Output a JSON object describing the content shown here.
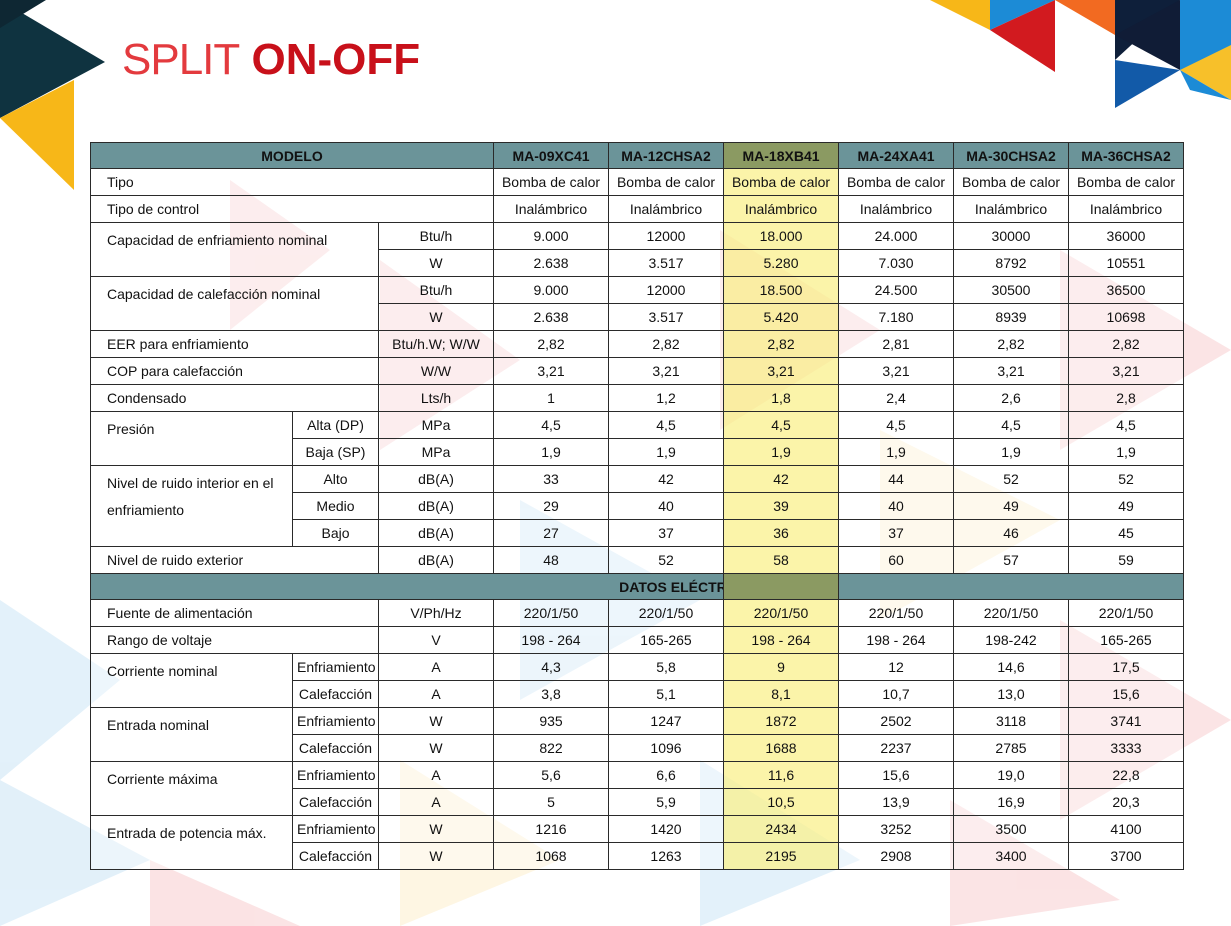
{
  "title": {
    "thin": "SPLIT",
    "bold": "ON-OFF"
  },
  "colors": {
    "brand_red": "#c8101a",
    "header_teal": "#6b9499",
    "highlight": "#f7ef8a",
    "navy": "#0e1f3a",
    "yellow": "#f7b718"
  },
  "header": {
    "label": "MODELO",
    "models": [
      "MA-09XC41",
      "MA-12CHSA2",
      "MA-18XB41",
      "MA-24XA41",
      "MA-30CHSA2",
      "MA-36CHSA2"
    ]
  },
  "rows": {
    "tipo": {
      "label": "Tipo",
      "values": [
        "Bomba de calor",
        "Bomba de calor",
        "Bomba de calor",
        "Bomba de calor",
        "Bomba de calor",
        "Bomba de calor"
      ]
    },
    "control": {
      "label": "Tipo de control",
      "values": [
        "Inalámbrico",
        "Inalámbrico",
        "Inalámbrico",
        "Inalámbrico",
        "Inalámbrico",
        "Inalámbrico"
      ]
    },
    "cooling_cap": {
      "label": "Capacidad de enfriamiento nominal",
      "unit1": "Btu/h",
      "values1": [
        "9.000",
        "12000",
        "18.000",
        "24.000",
        "30000",
        "36000"
      ],
      "unit2": "W",
      "values2": [
        "2.638",
        "3.517",
        "5.280",
        "7.030",
        "8792",
        "10551"
      ]
    },
    "heating_cap": {
      "label": "Capacidad de calefacción nominal",
      "unit1": "Btu/h",
      "values1": [
        "9.000",
        "12000",
        "18.500",
        "24.500",
        "30500",
        "36500"
      ],
      "unit2": "W",
      "values2": [
        "2.638",
        "3.517",
        "5.420",
        "7.180",
        "8939",
        "10698"
      ]
    },
    "eer": {
      "label": "EER para enfriamiento",
      "unit": "Btu/h.W; W/W",
      "values": [
        "2,82",
        "2,82",
        "2,82",
        "2,81",
        "2,82",
        "2,82"
      ]
    },
    "cop": {
      "label": "COP para calefacción",
      "unit": "W/W",
      "values": [
        "3,21",
        "3,21",
        "3,21",
        "3,21",
        "3,21",
        "3,21"
      ]
    },
    "condensado": {
      "label": "Condensado",
      "unit": "Lts/h",
      "values": [
        "1",
        "1,2",
        "1,8",
        "2,4",
        "2,6",
        "2,8"
      ]
    },
    "presion": {
      "label": "Presión",
      "sub1": "Alta (DP)",
      "unit1": "MPa",
      "values1": [
        "4,5",
        "4,5",
        "4,5",
        "4,5",
        "4,5",
        "4,5"
      ],
      "sub2": "Baja (SP)",
      "unit2": "MPa",
      "values2": [
        "1,9",
        "1,9",
        "1,9",
        "1,9",
        "1,9",
        "1,9"
      ]
    },
    "ruido_int": {
      "label": "Nivel de ruido interior en el enfriamiento",
      "sub1": "Alto",
      "sub2": "Medio",
      "sub3": "Bajo",
      "unit": "dB(A)",
      "values1": [
        "33",
        "42",
        "42",
        "44",
        "52",
        "52"
      ],
      "values2": [
        "29",
        "40",
        "39",
        "40",
        "49",
        "49"
      ],
      "values3": [
        "27",
        "37",
        "36",
        "37",
        "46",
        "45"
      ]
    },
    "ruido_ext": {
      "label": "Nivel de ruido exterior",
      "unit": "dB(A)",
      "values": [
        "48",
        "52",
        "58",
        "60",
        "57",
        "59"
      ]
    }
  },
  "section_electric": "DATOS ELÉCTRICOS",
  "electric": {
    "fuente": {
      "label": "Fuente de alimentación",
      "unit": "V/Ph/Hz",
      "values": [
        "220/1/50",
        "220/1/50",
        "220/1/50",
        "220/1/50",
        "220/1/50",
        "220/1/50"
      ]
    },
    "rango": {
      "label": "Rango de voltaje",
      "unit": "V",
      "values": [
        "198 - 264",
        "165-265",
        "198 - 264",
        "198 - 264",
        "198-242",
        "165-265"
      ]
    },
    "corriente": {
      "label": "Corriente nominal",
      "sub1": "Enfriamiento",
      "unit1": "A",
      "values1": [
        "4,3",
        "5,8",
        "9",
        "12",
        "14,6",
        "17,5"
      ],
      "sub2": "Calefacción",
      "unit2": "A",
      "values2": [
        "3,8",
        "5,1",
        "8,1",
        "10,7",
        "13,0",
        "15,6"
      ]
    },
    "entrada": {
      "label": "Entrada nominal",
      "sub1": "Enfriamiento",
      "unit1": "W",
      "values1": [
        "935",
        "1247",
        "1872",
        "2502",
        "3118",
        "3741"
      ],
      "sub2": "Calefacción",
      "unit2": "W",
      "values2": [
        "822",
        "1096",
        "1688",
        "2237",
        "2785",
        "3333"
      ]
    },
    "corriente_max": {
      "label": "Corriente máxima",
      "sub1": "Enfriamiento",
      "unit1": "A",
      "values1": [
        "5,6",
        "6,6",
        "11,6",
        "15,6",
        "19,0",
        "22,8"
      ],
      "sub2": "Calefacción",
      "unit2": "A",
      "values2": [
        "5",
        "5,9",
        "10,5",
        "13,9",
        "16,9",
        "20,3"
      ]
    },
    "potencia_max": {
      "label": "Entrada de potencia máx.",
      "sub1": "Enfriamiento",
      "unit1": "W",
      "values1": [
        "1216",
        "1420",
        "2434",
        "3252",
        "3500",
        "4100"
      ],
      "sub2": "Calefacción",
      "unit2": "W",
      "values2": [
        "1068",
        "1263",
        "2195",
        "2908",
        "3400",
        "3700"
      ]
    }
  }
}
